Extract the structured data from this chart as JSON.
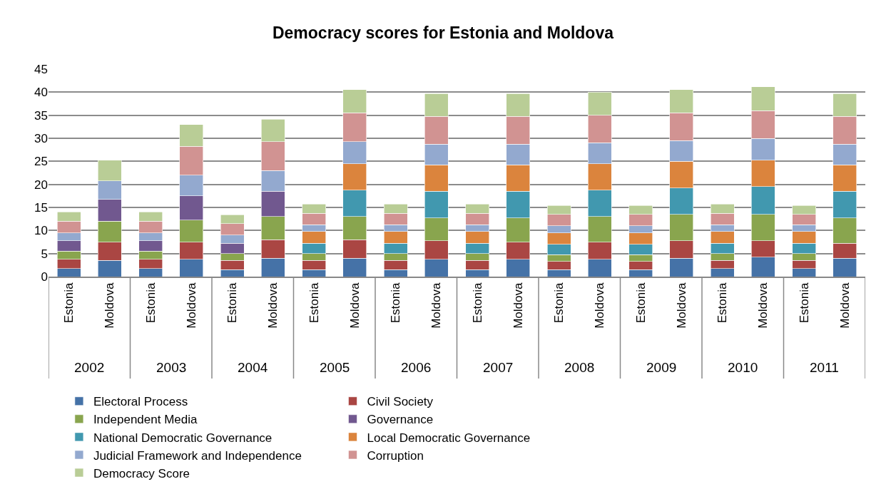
{
  "chart_data": {
    "type": "bar",
    "title": "Democracy scores for Estonia and Moldova",
    "stacked": true,
    "categories": [
      "Estonia",
      "Moldova",
      "Estonia",
      "Moldova",
      "Estonia",
      "Moldova",
      "Estonia",
      "Moldova",
      "Estonia",
      "Moldova",
      "Estonia",
      "Moldova",
      "Estonia",
      "Moldova",
      "Estonia",
      "Moldova",
      "Estonia",
      "Moldova",
      "Estonia",
      "Moldova"
    ],
    "annotations": [
      "2002",
      "2003",
      "2004",
      "2005",
      "2006",
      "2007",
      "2008",
      "2009",
      "2010",
      "2011"
    ],
    "ylim": [
      0,
      45
    ],
    "yticks": [
      0,
      5,
      10,
      15,
      20,
      25,
      30,
      35,
      40,
      45
    ],
    "grid": "y",
    "legend": "bottom",
    "series": [
      {
        "name": "Electoral Process",
        "color": "#4572a7",
        "values": [
          1.75,
          3.5,
          1.75,
          3.75,
          1.5,
          4.0,
          1.5,
          4.0,
          1.5,
          3.75,
          1.5,
          3.75,
          1.5,
          3.75,
          1.5,
          4.0,
          1.75,
          4.25,
          1.75,
          4.0
        ]
      },
      {
        "name": "Civil Society",
        "color": "#aa4643",
        "values": [
          2.0,
          4.0,
          2.0,
          3.75,
          2.0,
          4.0,
          2.0,
          4.0,
          2.0,
          4.0,
          2.0,
          3.75,
          1.75,
          3.75,
          1.75,
          3.75,
          1.75,
          3.5,
          1.75,
          3.25
        ]
      },
      {
        "name": "Independent Media",
        "color": "#89a54e",
        "values": [
          1.75,
          4.5,
          1.75,
          4.75,
          1.5,
          5.0,
          1.5,
          5.0,
          1.5,
          5.0,
          1.5,
          5.25,
          1.5,
          5.5,
          1.5,
          5.75,
          1.5,
          5.75,
          1.5,
          5.5
        ]
      },
      {
        "name": "Governance",
        "color": "#71588f",
        "values": [
          2.25,
          4.75,
          2.25,
          5.25,
          2.25,
          5.5,
          null,
          null,
          null,
          null,
          null,
          null,
          null,
          null,
          null,
          null,
          null,
          null,
          null,
          null
        ]
      },
      {
        "name": "National Democratic Governance",
        "color": "#4198af",
        "values": [
          null,
          null,
          null,
          null,
          null,
          null,
          2.25,
          5.75,
          2.25,
          5.75,
          2.25,
          5.75,
          2.25,
          5.75,
          2.25,
          5.75,
          2.25,
          6.0,
          2.25,
          5.75
        ]
      },
      {
        "name": "Local Democratic Governance",
        "color": "#db843d",
        "values": [
          null,
          null,
          null,
          null,
          null,
          null,
          2.5,
          5.75,
          2.5,
          5.75,
          2.5,
          5.75,
          2.5,
          5.75,
          2.5,
          5.75,
          2.5,
          5.75,
          2.5,
          5.75
        ]
      },
      {
        "name": "Judicial Framework and Independence",
        "color": "#93a9cf",
        "values": [
          1.75,
          4.0,
          1.75,
          4.5,
          1.75,
          4.5,
          1.5,
          4.75,
          1.5,
          4.5,
          1.5,
          4.5,
          1.5,
          4.5,
          1.5,
          4.5,
          1.5,
          4.75,
          1.5,
          4.5
        ]
      },
      {
        "name": "Corruption",
        "color": "#d19392",
        "values": [
          2.5,
          null,
          2.5,
          6.25,
          2.5,
          6.25,
          2.5,
          6.25,
          2.5,
          6.0,
          2.5,
          6.0,
          2.5,
          6.0,
          2.5,
          6.0,
          2.5,
          6.0,
          2.25,
          6.0
        ]
      },
      {
        "name": "Democracy Score",
        "color": "#b9cd96",
        "values": [
          2.0,
          4.5,
          2.0,
          4.71,
          1.92,
          4.88,
          1.96,
          5.07,
          1.96,
          4.96,
          1.96,
          4.96,
          1.93,
          5.0,
          1.93,
          5.07,
          1.96,
          5.14,
          1.93,
          4.96
        ]
      }
    ]
  }
}
